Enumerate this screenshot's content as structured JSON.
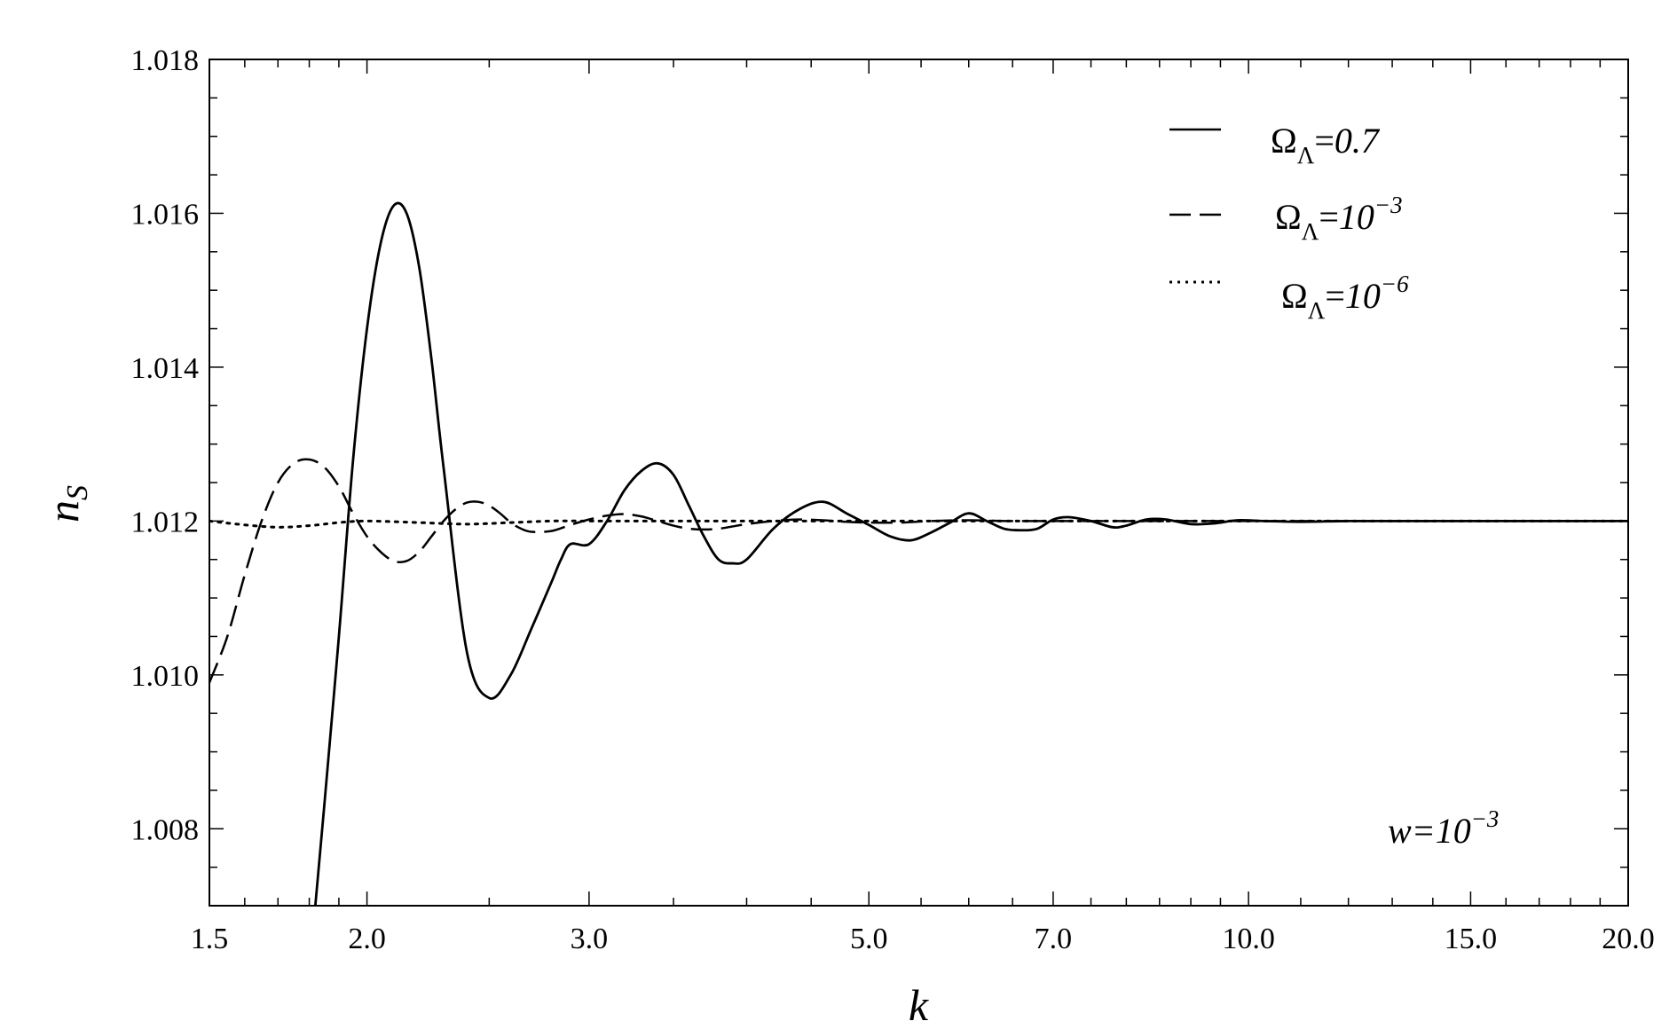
{
  "chart_data": {
    "type": "line",
    "xscale": "log",
    "xlabel": "k",
    "ylabel": "n",
    "ylabel_sub": "S",
    "xlim": [
      1.5,
      20.0
    ],
    "ylim": [
      1.007,
      1.018
    ],
    "x_ticks": [
      {
        "value": 1.5,
        "label": "1.5"
      },
      {
        "value": 2.0,
        "label": "2.0"
      },
      {
        "value": 3.0,
        "label": "3.0"
      },
      {
        "value": 5.0,
        "label": "5.0"
      },
      {
        "value": 7.0,
        "label": "7.0"
      },
      {
        "value": 10.0,
        "label": "10.0"
      },
      {
        "value": 15.0,
        "label": "15.0"
      },
      {
        "value": 20.0,
        "label": "20.0"
      }
    ],
    "y_ticks": [
      {
        "value": 1.008,
        "label": "1.008"
      },
      {
        "value": 1.01,
        "label": "1.010"
      },
      {
        "value": 1.012,
        "label": "1.012"
      },
      {
        "value": 1.014,
        "label": "1.014"
      },
      {
        "value": 1.016,
        "label": "1.016"
      },
      {
        "value": 1.018,
        "label": "1.018"
      }
    ],
    "grid": false,
    "legend_position": "top-right",
    "series": [
      {
        "name": "ΩΛ=0.7",
        "legend_base": "Ω",
        "legend_sub": "Λ",
        "legend_eq": "=",
        "legend_value": "0.7",
        "legend_sup": "",
        "style": "solid",
        "x": [
          1.82,
          1.85,
          1.9,
          1.95,
          2.0,
          2.05,
          2.1,
          2.15,
          2.2,
          2.25,
          2.3,
          2.4,
          2.5,
          2.6,
          2.7,
          2.8,
          2.85,
          2.9,
          3.0,
          3.1,
          3.2,
          3.3,
          3.4,
          3.5,
          3.6,
          3.7,
          3.8,
          3.9,
          4.0,
          4.2,
          4.4,
          4.6,
          4.8,
          5.0,
          5.2,
          5.4,
          5.6,
          5.8,
          6.0,
          6.2,
          6.4,
          6.6,
          6.8,
          7.0,
          7.2,
          7.5,
          7.8,
          8.0,
          8.3,
          8.6,
          9.0,
          9.4,
          9.8,
          10.3,
          11.0,
          12.0,
          13.0,
          14.0,
          15.0,
          17.0,
          20.0
        ],
        "y": [
          1.007,
          1.0083,
          1.0105,
          1.0128,
          1.0145,
          1.0156,
          1.0161,
          1.016,
          1.0153,
          1.0141,
          1.0127,
          1.0103,
          1.0097,
          1.01,
          1.0106,
          1.0112,
          1.0115,
          1.0117,
          1.0117,
          1.012,
          1.0124,
          1.01265,
          1.01275,
          1.0126,
          1.0122,
          1.0118,
          1.0115,
          1.01145,
          1.0115,
          1.0119,
          1.01215,
          1.01225,
          1.0121,
          1.01195,
          1.0118,
          1.01175,
          1.01185,
          1.01198,
          1.0121,
          1.012,
          1.0119,
          1.01188,
          1.0119,
          1.01202,
          1.01205,
          1.012,
          1.01192,
          1.01194,
          1.01202,
          1.01202,
          1.01196,
          1.01197,
          1.01201,
          1.012,
          1.01199,
          1.012,
          1.012,
          1.012,
          1.012,
          1.012,
          1.012
        ]
      },
      {
        "name": "ΩΛ=10−3",
        "legend_base": "Ω",
        "legend_sub": "Λ",
        "legend_eq": "=",
        "legend_value": "10",
        "legend_sup": "−3",
        "style": "dashed",
        "x": [
          1.5,
          1.55,
          1.6,
          1.65,
          1.7,
          1.75,
          1.8,
          1.85,
          1.9,
          1.95,
          2.0,
          2.05,
          2.1,
          2.15,
          2.2,
          2.25,
          2.3,
          2.35,
          2.4,
          2.45,
          2.5,
          2.55,
          2.6,
          2.65,
          2.7,
          2.8,
          2.9,
          3.0,
          3.1,
          3.2,
          3.3,
          3.4,
          3.5,
          3.6,
          3.7,
          3.8,
          3.9,
          4.0,
          4.2,
          4.4,
          4.6,
          4.8,
          5.0,
          5.3,
          5.6,
          6.0,
          6.5,
          7.0,
          8.0,
          9.0,
          10.0,
          12.0,
          15.0,
          20.0
        ],
        "y": [
          1.0099,
          1.0105,
          1.0113,
          1.012,
          1.0125,
          1.01275,
          1.0128,
          1.0127,
          1.01245,
          1.0121,
          1.0118,
          1.0116,
          1.01148,
          1.01148,
          1.0116,
          1.0118,
          1.012,
          1.01215,
          1.01224,
          1.01225,
          1.0122,
          1.0121,
          1.01198,
          1.0119,
          1.01186,
          1.01187,
          1.01195,
          1.01202,
          1.01207,
          1.01209,
          1.01206,
          1.012,
          1.01194,
          1.0119,
          1.01189,
          1.0119,
          1.01193,
          1.01196,
          1.012,
          1.01202,
          1.01201,
          1.01199,
          1.01198,
          1.01198,
          1.012,
          1.01201,
          1.012,
          1.012,
          1.012,
          1.012,
          1.012,
          1.012,
          1.012,
          1.012
        ]
      },
      {
        "name": "ΩΛ=10−6",
        "legend_base": "Ω",
        "legend_sub": "Λ",
        "legend_eq": "=",
        "legend_value": "10",
        "legend_sup": "−6",
        "style": "dotted",
        "x": [
          1.5,
          1.6,
          1.7,
          1.8,
          1.9,
          2.0,
          2.2,
          2.4,
          2.6,
          2.8,
          3.0,
          3.5,
          4.0,
          5.0,
          7.0,
          10.0,
          15.0,
          20.0
        ],
        "y": [
          1.012,
          1.01195,
          1.01192,
          1.01194,
          1.01198,
          1.012,
          1.01198,
          1.01196,
          1.01198,
          1.012,
          1.012,
          1.012,
          1.012,
          1.012,
          1.012,
          1.012,
          1.012,
          1.012
        ]
      }
    ],
    "annotations": [
      {
        "base": "w",
        "eq": "=",
        "value": "10",
        "sup": "−3"
      }
    ]
  }
}
